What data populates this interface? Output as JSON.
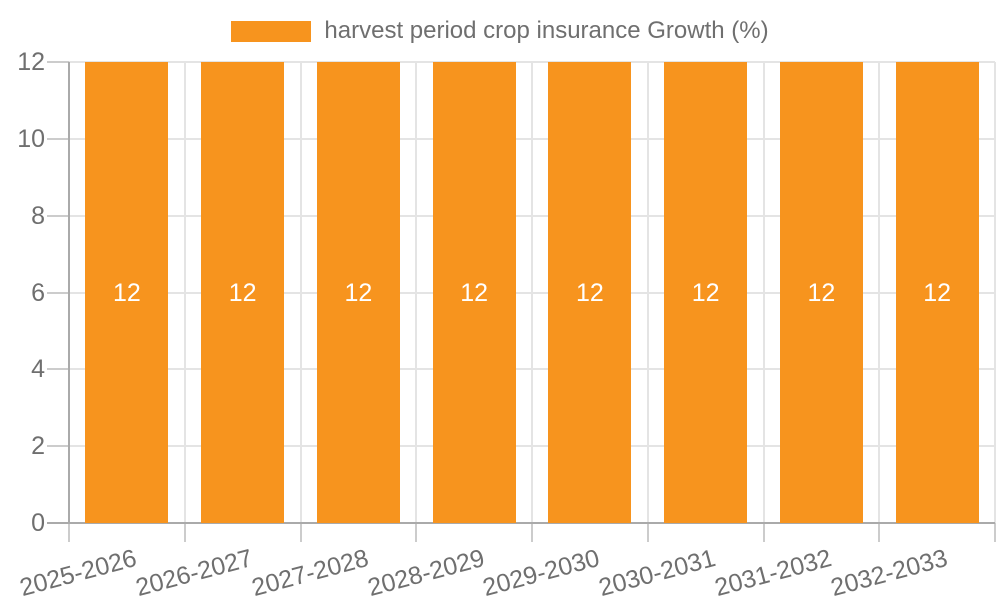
{
  "chart_data": {
    "type": "bar",
    "title": "",
    "legend": {
      "label": "harvest period crop insurance Growth (%)",
      "position": "top"
    },
    "categories": [
      "2025-2026",
      "2026-2027",
      "2027-2028",
      "2028-2029",
      "2029-2030",
      "2030-2031",
      "2031-2032",
      "2032-2033"
    ],
    "series": [
      {
        "name": "harvest period crop insurance Growth (%)",
        "values": [
          12,
          12,
          12,
          12,
          12,
          12,
          12,
          12
        ]
      }
    ],
    "value_labels": [
      "12",
      "12",
      "12",
      "12",
      "12",
      "12",
      "12",
      "12"
    ],
    "xlabel": "",
    "ylabel": "",
    "ylim": [
      0,
      12
    ],
    "yticks": [
      0,
      2,
      4,
      6,
      8,
      10,
      12
    ],
    "grid": true,
    "value_label_position": "center"
  },
  "colors": {
    "bar": "#f7941e",
    "grid": "#e4e4e4",
    "axis": "#aaaaaa",
    "tick": "#cccccc",
    "text": "#6f6f6f",
    "value_label": "#ffffff",
    "background": "#ffffff"
  }
}
